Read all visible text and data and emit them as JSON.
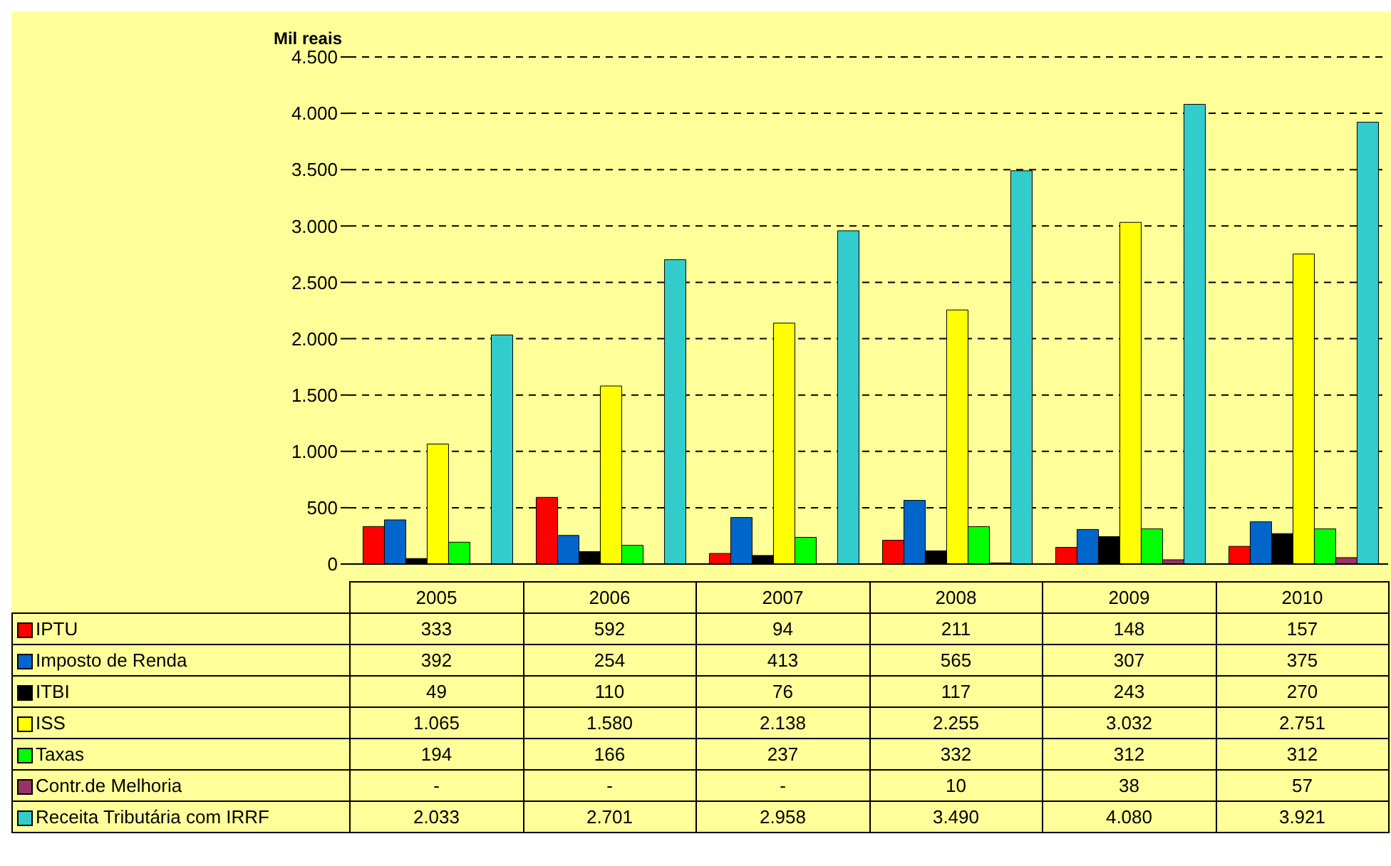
{
  "chart_data": {
    "type": "bar",
    "ylabel": "Mil reais",
    "categories": [
      "2005",
      "2006",
      "2007",
      "2008",
      "2009",
      "2010"
    ],
    "series": [
      {
        "name": "IPTU",
        "color": "#ff0000",
        "values": [
          333,
          592,
          94,
          211,
          148,
          157
        ],
        "value_labels": [
          "333",
          "592",
          "94",
          "211",
          "148",
          "157"
        ]
      },
      {
        "name": "Imposto de Renda",
        "color": "#0066cc",
        "values": [
          392,
          254,
          413,
          565,
          307,
          375
        ],
        "value_labels": [
          "392",
          "254",
          "413",
          "565",
          "307",
          "375"
        ]
      },
      {
        "name": "ITBI",
        "color": "#000000",
        "values": [
          49,
          110,
          76,
          117,
          243,
          270
        ],
        "value_labels": [
          "49",
          "110",
          "76",
          "117",
          "243",
          "270"
        ]
      },
      {
        "name": "ISS",
        "color": "#ffff00",
        "values": [
          1065,
          1580,
          2138,
          2255,
          3032,
          2751
        ],
        "value_labels": [
          "1.065",
          "1.580",
          "2.138",
          "2.255",
          "3.032",
          "2.751"
        ]
      },
      {
        "name": "Taxas",
        "color": "#00ff00",
        "values": [
          194,
          166,
          237,
          332,
          312,
          312
        ],
        "value_labels": [
          "194",
          "166",
          "237",
          "332",
          "312",
          "312"
        ]
      },
      {
        "name": "Contr.de Melhoria",
        "color": "#993366",
        "values": [
          null,
          null,
          null,
          10,
          38,
          57
        ],
        "value_labels": [
          "-",
          "-",
          "-",
          "10",
          "38",
          "57"
        ]
      },
      {
        "name": "Receita Tributária com IRRF",
        "color": "#33cccc",
        "values": [
          2033,
          2701,
          2958,
          3490,
          4080,
          3921
        ],
        "value_labels": [
          "2.033",
          "2.701",
          "2.958",
          "3.490",
          "4.080",
          "3.921"
        ]
      }
    ],
    "ylim": [
      0,
      4500
    ],
    "yticks": [
      {
        "value": 0,
        "label": "0"
      },
      {
        "value": 500,
        "label": "500"
      },
      {
        "value": 1000,
        "label": "1.000"
      },
      {
        "value": 1500,
        "label": "1.500"
      },
      {
        "value": 2000,
        "label": "2.000"
      },
      {
        "value": 2500,
        "label": "2.500"
      },
      {
        "value": 3000,
        "label": "3.000"
      },
      {
        "value": 3500,
        "label": "3.500"
      },
      {
        "value": 4000,
        "label": "4.000"
      },
      {
        "value": 4500,
        "label": "4.500"
      }
    ],
    "grid": "y",
    "legend": "bottom"
  }
}
